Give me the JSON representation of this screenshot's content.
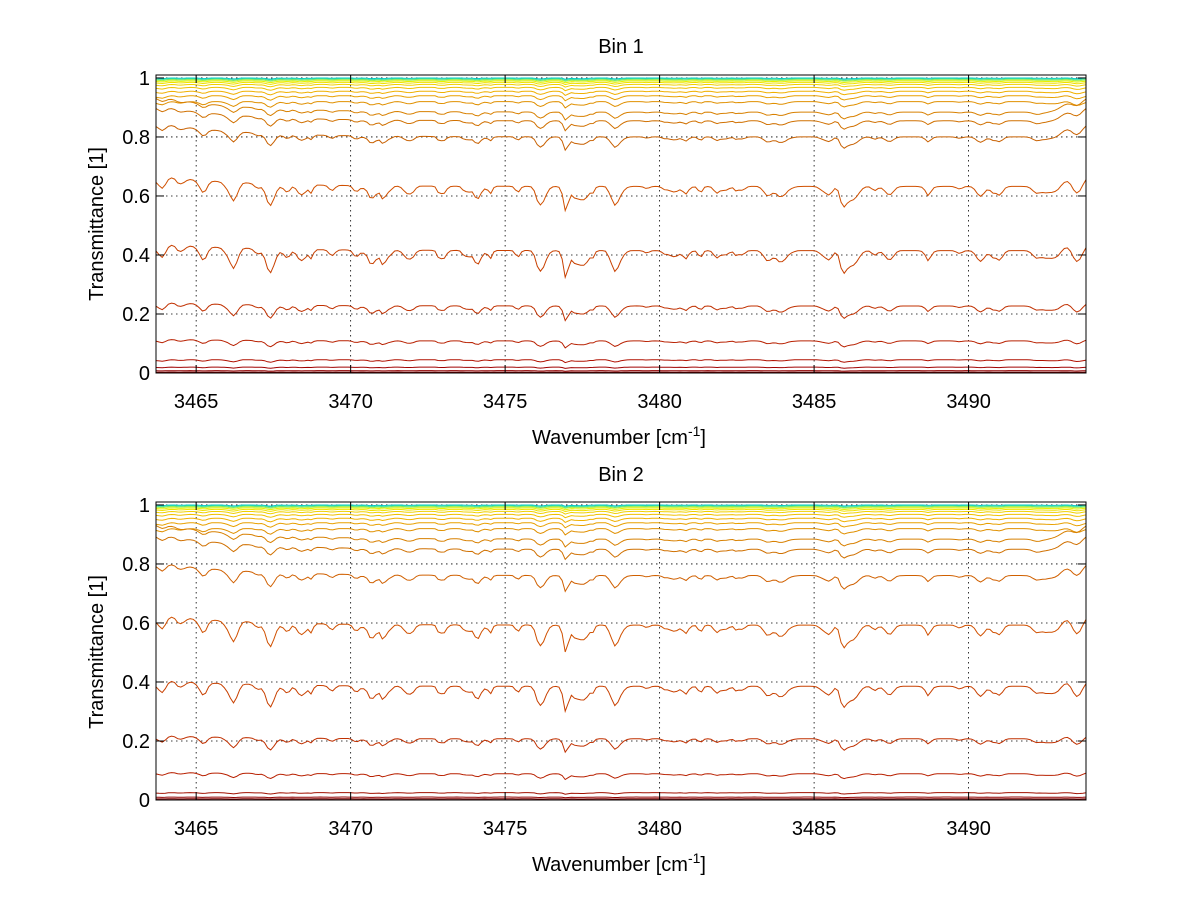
{
  "chart_data": [
    {
      "type": "line",
      "title": "Bin 1",
      "xlabel_base": "Wavenumber [cm",
      "xlabel_sup": "-1",
      "xlabel_end": "]",
      "ylabel": "Transmittance [1]",
      "xlim": [
        3463.7,
        3493.8
      ],
      "ylim": [
        0,
        1.01
      ],
      "xticks": [
        3465,
        3470,
        3475,
        3480,
        3485,
        3490
      ],
      "xtick_labels": [
        "3465",
        "3470",
        "3475",
        "3480",
        "3485",
        "3490"
      ],
      "yticks": [
        0,
        0.2,
        0.4,
        0.6,
        0.8,
        1
      ],
      "ytick_labels": [
        "0",
        "0.2",
        "0.4",
        "0.6",
        "0.8",
        "1"
      ],
      "grid": true,
      "legend": "none",
      "series_levels": [
        1.0,
        0.997,
        0.994,
        0.99,
        0.985,
        0.978,
        0.968,
        0.955,
        0.94,
        0.92,
        0.895,
        0.865,
        0.81,
        0.64,
        0.42,
        0.23,
        0.11,
        0.045,
        0.02,
        0.008,
        0.003,
        0.001
      ],
      "series_colors": [
        "#00c8c8",
        "#40e0a0",
        "#a0f040",
        "#e8f000",
        "#f0e000",
        "#f0d000",
        "#f0c000",
        "#f0b000",
        "#e8a000",
        "#e09000",
        "#d88000",
        "#d07000",
        "#c86000",
        "#d05000",
        "#c84000",
        "#c03000",
        "#b82000",
        "#b01000",
        "#a00000",
        "#900000",
        "#800000",
        "#700000"
      ]
    },
    {
      "type": "line",
      "title": "Bin 2",
      "xlabel_base": "Wavenumber [cm",
      "xlabel_sup": "-1",
      "xlabel_end": "]",
      "ylabel": "Transmittance [1]",
      "xlim": [
        3463.7,
        3493.8
      ],
      "ylim": [
        0,
        1.01
      ],
      "xticks": [
        3465,
        3470,
        3475,
        3480,
        3485,
        3490
      ],
      "xtick_labels": [
        "3465",
        "3470",
        "3475",
        "3480",
        "3485",
        "3490"
      ],
      "yticks": [
        0,
        0.2,
        0.4,
        0.6,
        0.8,
        1
      ],
      "ytick_labels": [
        "0",
        "0.2",
        "0.4",
        "0.6",
        "0.8",
        "1"
      ],
      "grid": true,
      "legend": "none",
      "series_levels": [
        1.0,
        0.997,
        0.994,
        0.99,
        0.985,
        0.978,
        0.968,
        0.955,
        0.94,
        0.92,
        0.895,
        0.86,
        0.77,
        0.6,
        0.39,
        0.21,
        0.09,
        0.025,
        0.01,
        0.004,
        0.001
      ],
      "series_colors": [
        "#00c8c8",
        "#40e0a0",
        "#a0f040",
        "#e8f000",
        "#f0e000",
        "#f0d000",
        "#f0c000",
        "#f0b000",
        "#e8a000",
        "#e09000",
        "#d88000",
        "#d07000",
        "#d06000",
        "#d05000",
        "#c84000",
        "#c03000",
        "#b82000",
        "#a01000",
        "#900000",
        "#800000",
        "#700000"
      ]
    }
  ]
}
